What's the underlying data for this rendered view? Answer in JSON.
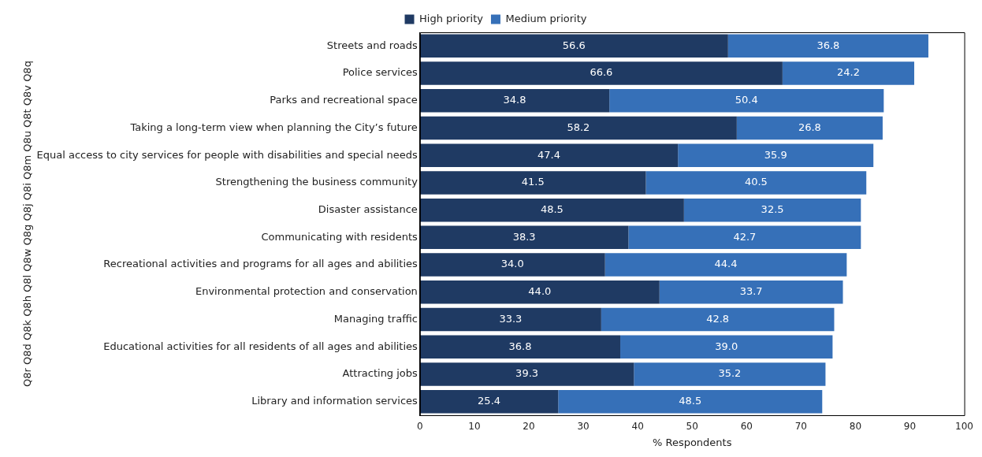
{
  "chart_data": {
    "type": "bar",
    "orientation": "horizontal",
    "stacked": true,
    "xlabel": "% Respondents",
    "ylabel": "Q8r Q8d Q8k Q8h Q8l Q8w Q8g Q8j Q8i Q8m Q8u Q8t Q8v Q8q",
    "categories": [
      "Streets and roads",
      "Police services",
      "Parks and recreational space",
      "Taking a long-term view when planning the City’s future",
      "Equal access to city services for people with disabilities and special needs",
      "Strengthening the business community",
      "Disaster assistance",
      "Communicating with residents",
      "Recreational activities and programs for all ages and abilities",
      "Environmental protection and conservation",
      "Managing traffic",
      "Educational activities for all residents of all ages and abilities",
      "Attracting jobs",
      "Library and information services"
    ],
    "series": [
      {
        "name": "High priority",
        "color": "#1f3a63",
        "values": [
          56.6,
          66.6,
          34.8,
          58.2,
          47.4,
          41.5,
          48.5,
          38.3,
          34.0,
          44.0,
          33.3,
          36.8,
          39.3,
          25.4
        ],
        "value_labels": [
          "56.6",
          "66.6",
          "34.8",
          "58.2",
          "47.4",
          "41.5",
          "48.5",
          "38.3",
          "34.0",
          "44.0",
          "33.3",
          "36.8",
          "39.3",
          "25.4"
        ]
      },
      {
        "name": "Medium priority",
        "color": "#3670b8",
        "values": [
          36.8,
          24.2,
          50.4,
          26.8,
          35.9,
          40.5,
          32.5,
          42.7,
          44.4,
          33.7,
          42.8,
          39.0,
          35.2,
          48.5
        ],
        "value_labels": [
          "36.8",
          "24.2",
          "50.4",
          "26.8",
          "35.9",
          "40.5",
          "32.5",
          "42.7",
          "44.4",
          "33.7",
          "42.8",
          "39.0",
          "35.2",
          "48.5"
        ]
      }
    ],
    "xlim": [
      0,
      100
    ],
    "xticks": [
      0,
      10,
      20,
      30,
      40,
      50,
      60,
      70,
      80,
      90,
      100
    ],
    "grid": false,
    "legend": "top"
  }
}
